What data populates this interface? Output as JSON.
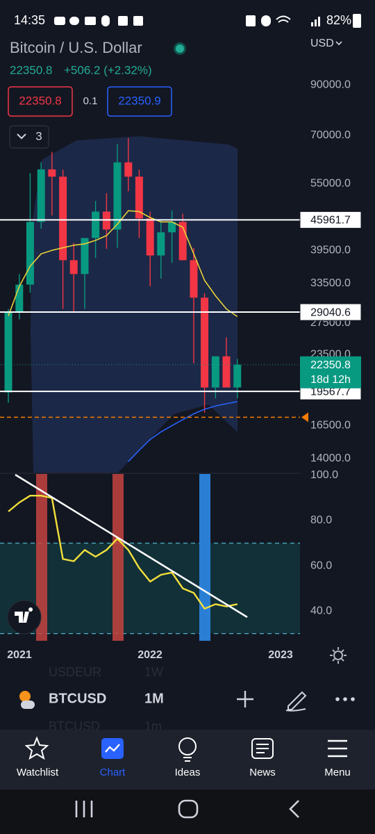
{
  "status_bar": {
    "time": "14:35",
    "battery": "82%"
  },
  "header": {
    "title": "Bitcoin / U.S. Dollar",
    "price": "22350.8",
    "change": "+506.2 (+2.32%)",
    "currency": "USD"
  },
  "order_panel": {
    "sell": "22350.8",
    "spread": "0.1",
    "buy": "22350.9"
  },
  "indicator_count": "3",
  "chart_data": [
    {
      "type": "candlestick",
      "log": true,
      "grid": false,
      "up_color": "#089981",
      "down_color": "#f23645",
      "xlim": [
        2020.851,
        2023.149
      ],
      "xticks": [
        2021,
        2022,
        2023
      ],
      "ylim": [
        13060,
        101300
      ],
      "yticks": [
        {
          "value": 90000,
          "label": "90000.0"
        },
        {
          "value": 70000,
          "label": "70000.0"
        },
        {
          "value": 55000,
          "label": "55000.0"
        },
        {
          "value": 39500,
          "label": "39500.0"
        },
        {
          "value": 33500,
          "label": "33500.0"
        },
        {
          "value": 27500,
          "label": "27500.0"
        },
        {
          "value": 23500,
          "label": "23500.0"
        },
        {
          "value": 16500,
          "label": "16500.0"
        },
        {
          "value": 14000,
          "label": "14000.0"
        }
      ],
      "x": [
        2020.915,
        2020.999,
        2021.082,
        2021.166,
        2021.249,
        2021.333,
        2021.416,
        2021.5,
        2021.583,
        2021.667,
        2021.75,
        2021.834,
        2021.917,
        2022.001,
        2022.084,
        2022.168,
        2022.251,
        2022.335,
        2022.418,
        2022.502,
        2022.585,
        2022.669
      ],
      "open": [
        19470,
        29000,
        33300,
        45500,
        59100,
        57000,
        37600,
        35100,
        42000,
        47900,
        43800,
        61200,
        57000,
        46300,
        38500,
        43200,
        45500,
        37600,
        31200,
        19950,
        23300,
        19950
      ],
      "high": [
        29500,
        35100,
        58000,
        61200,
        64500,
        59000,
        41000,
        42000,
        50500,
        52500,
        67000,
        69100,
        59000,
        47900,
        45800,
        48200,
        47400,
        40000,
        31900,
        23300,
        25600,
        23000
      ],
      "low": [
        18500,
        28000,
        32000,
        44000,
        47000,
        29500,
        29000,
        29500,
        38000,
        39800,
        40000,
        53000,
        42000,
        33000,
        34300,
        37100,
        37600,
        22500,
        17600,
        18900,
        19950,
        18900
      ],
      "close": [
        29000,
        33300,
        45500,
        59100,
        57000,
        37600,
        35100,
        42000,
        47900,
        43800,
        61200,
        57000,
        46300,
        38500,
        43200,
        45500,
        37600,
        31200,
        19950,
        23300,
        19950,
        22350.8
      ],
      "lines": [
        {
          "color": "#e8d13a",
          "values": [
            28500,
            33000,
            36500,
            38800,
            39500,
            40000,
            40500,
            40800,
            41500,
            42500,
            45000,
            48100,
            47900,
            46500,
            45500,
            45500,
            44300,
            38800,
            34000,
            31500,
            29500,
            28400
          ]
        },
        {
          "color": "#2962ff",
          "values": [
            null,
            null,
            null,
            null,
            null,
            null,
            null,
            null,
            null,
            null,
            null,
            13800,
            14600,
            15400,
            16000,
            16500,
            17000,
            17500,
            17900,
            18200,
            18400,
            18600
          ]
        }
      ],
      "price_lines": [
        45961.7,
        29040.6,
        19567.7
      ],
      "countdown": "18d 12h",
      "alert_line": 17200,
      "alert_color": "#f57c00"
    },
    {
      "type": "line",
      "color": "#f3e03b",
      "ylim": [
        26.8,
        100.6
      ],
      "yticks": [
        {
          "value": 100,
          "label": "100.0"
        },
        {
          "value": 80,
          "label": "80.0"
        },
        {
          "value": 60,
          "label": "60.0"
        },
        {
          "value": 40,
          "label": "40.0"
        }
      ],
      "bands": [
        30,
        70
      ],
      "values": [
        84,
        88,
        91,
        91,
        90,
        63,
        62,
        67,
        64,
        67,
        72,
        67,
        59,
        53,
        56,
        57,
        50,
        48,
        41,
        43,
        42,
        43
      ]
    }
  ],
  "toolbar": {
    "symbol": "BTCUSD",
    "interval": "1M",
    "ghost_above": [
      "USDEUR",
      "1W"
    ],
    "ghost_below": [
      "BTCUSD",
      "1m"
    ]
  },
  "nav": [
    "Watchlist",
    "Chart",
    "Ideas",
    "News",
    "Menu"
  ]
}
